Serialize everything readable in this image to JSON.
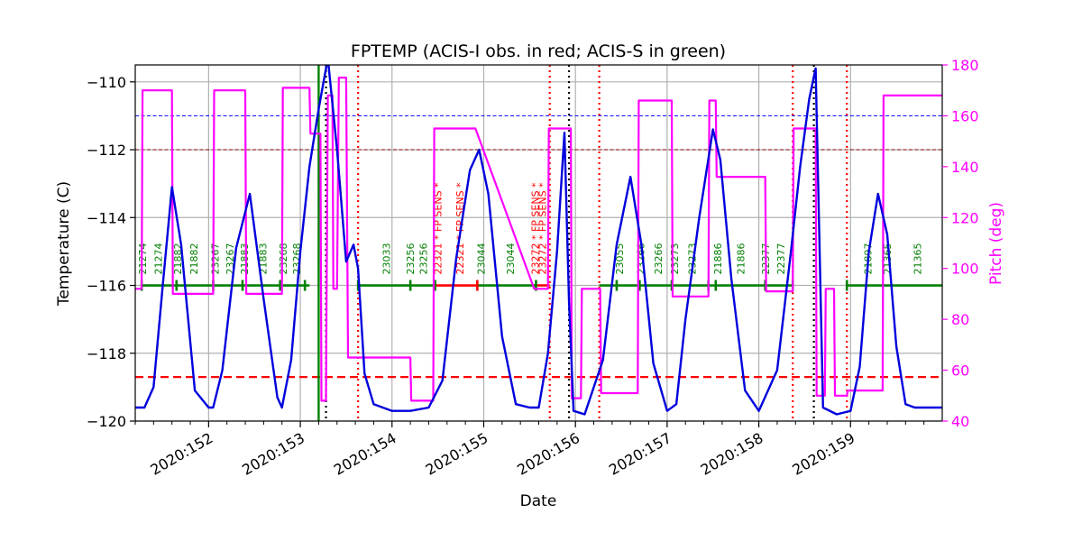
{
  "chart_data": {
    "type": "line",
    "title": "FPTEMP (ACIS-I obs. in red; ACIS-S in green)",
    "xlabel": "Date",
    "ylabel_left": "Temperature (C)",
    "ylabel_right": "Pitch (deg)",
    "xlim": [
      151.2,
      160.0
    ],
    "ylim_left": [
      -120,
      -109.5
    ],
    "ylim_right": [
      40,
      180
    ],
    "grid": true,
    "x_ticks": [
      152,
      153,
      154,
      155,
      156,
      157,
      158,
      159
    ],
    "x_tick_labels": [
      "2020:152",
      "2020:153",
      "2020:154",
      "2020:155",
      "2020:156",
      "2020:157",
      "2020:158",
      "2020:159"
    ],
    "y_ticks_left": [
      -120,
      -118,
      -116,
      -114,
      -112,
      -110
    ],
    "y_tick_labels_left": [
      "−120",
      "−118",
      "−116",
      "−114",
      "−112",
      "−110"
    ],
    "y_ticks_right": [
      40,
      60,
      80,
      100,
      120,
      140,
      160,
      180
    ],
    "y_tick_labels_right": [
      "40",
      "60",
      "80",
      "100",
      "120",
      "140",
      "160",
      "180"
    ],
    "colors": {
      "temperature": "#0000dd",
      "pitch": "#ff00ff",
      "acis_i": "#ff0000",
      "acis_s": "#008000",
      "grid": "#b0b0b0",
      "limit_dashed": "#ff0000",
      "limit_blue": "#0000ff",
      "limit_darkred": "#8b0000",
      "black_marker": "#000000"
    },
    "hlines": [
      {
        "y": -111.0,
        "color": "#0000ff",
        "style": "dashed-fine"
      },
      {
        "y": -112.0,
        "color": "#8b0000",
        "style": "dashed-fine"
      },
      {
        "y": -118.7,
        "color": "#ff0000",
        "style": "dashed-thick"
      }
    ],
    "vlines": [
      {
        "x": 153.2,
        "color": "#008000",
        "style": "solid"
      },
      {
        "x": 153.28,
        "color": "#000000",
        "style": "dotted"
      },
      {
        "x": 153.63,
        "color": "#ff0000",
        "style": "dotted"
      },
      {
        "x": 155.72,
        "color": "#ff0000",
        "style": "dotted"
      },
      {
        "x": 155.93,
        "color": "#000000",
        "style": "dotted"
      },
      {
        "x": 156.26,
        "color": "#ff0000",
        "style": "dotted"
      },
      {
        "x": 158.37,
        "color": "#ff0000",
        "style": "dotted"
      },
      {
        "x": 158.6,
        "color": "#000000",
        "style": "dotted"
      },
      {
        "x": 158.96,
        "color": "#ff0000",
        "style": "dotted"
      }
    ],
    "series": [
      {
        "name": "Temperature",
        "axis": "left",
        "x": [
          151.2,
          151.3,
          151.4,
          151.5,
          151.6,
          151.7,
          151.85,
          152.0,
          152.05,
          152.15,
          152.3,
          152.45,
          152.6,
          152.75,
          152.8,
          152.9,
          153.0,
          153.1,
          153.2,
          153.3,
          153.4,
          153.5,
          153.58,
          153.63,
          153.7,
          153.8,
          153.9,
          154.0,
          154.2,
          154.4,
          154.55,
          154.7,
          154.85,
          154.95,
          155.05,
          155.2,
          155.35,
          155.5,
          155.6,
          155.7,
          155.8,
          155.88,
          155.93,
          155.98,
          156.1,
          156.3,
          156.45,
          156.6,
          156.72,
          156.85,
          157.0,
          157.1,
          157.2,
          157.35,
          157.5,
          157.58,
          157.7,
          157.85,
          158.0,
          158.2,
          158.35,
          158.45,
          158.55,
          158.62,
          158.7,
          158.85,
          159.0,
          159.1,
          159.2,
          159.3,
          159.4,
          159.5,
          159.6,
          159.7,
          159.8,
          159.9,
          160.0
        ],
        "values": [
          -119.6,
          -119.6,
          -119.0,
          -116.0,
          -113.1,
          -114.8,
          -119.1,
          -119.6,
          -119.6,
          -118.5,
          -114.9,
          -113.3,
          -116.4,
          -119.3,
          -119.6,
          -118.2,
          -115.0,
          -112.5,
          -110.8,
          -109.3,
          -112.0,
          -115.3,
          -114.8,
          -115.5,
          -118.6,
          -119.5,
          -119.6,
          -119.7,
          -119.7,
          -119.6,
          -118.8,
          -115.2,
          -112.6,
          -112.0,
          -113.3,
          -117.5,
          -119.5,
          -119.6,
          -119.6,
          -118.0,
          -115.0,
          -111.5,
          -116.5,
          -119.7,
          -119.8,
          -118.2,
          -114.8,
          -112.8,
          -114.8,
          -118.3,
          -119.7,
          -119.5,
          -117.0,
          -114.0,
          -111.4,
          -112.3,
          -115.8,
          -119.1,
          -119.7,
          -118.5,
          -115.0,
          -112.5,
          -110.5,
          -109.6,
          -119.6,
          -119.8,
          -119.7,
          -118.4,
          -115.0,
          -113.3,
          -114.5,
          -117.8,
          -119.5,
          -119.6,
          -119.6,
          -119.6,
          -119.6
        ]
      },
      {
        "name": "Pitch",
        "axis": "right",
        "x": [
          151.2,
          151.27,
          151.28,
          151.3,
          151.6,
          151.61,
          151.65,
          152.05,
          152.06,
          152.08,
          152.4,
          152.41,
          152.45,
          152.8,
          152.81,
          152.83,
          153.1,
          153.11,
          153.2,
          153.22,
          153.23,
          153.28,
          153.3,
          153.35,
          153.36,
          153.4,
          153.42,
          153.5,
          153.52,
          153.57,
          153.6,
          153.64,
          153.65,
          154.2,
          154.21,
          154.45,
          154.46,
          154.9,
          154.91,
          155.55,
          155.56,
          155.7,
          155.71,
          155.95,
          155.96,
          156.06,
          156.07,
          156.15,
          156.27,
          156.28,
          156.68,
          156.69,
          157.05,
          157.06,
          157.45,
          157.46,
          157.53,
          157.54,
          158.07,
          158.08,
          158.37,
          158.38,
          158.62,
          158.63,
          158.72,
          158.73,
          158.82,
          158.83,
          158.96,
          158.97,
          159.35,
          159.36,
          160.0
        ],
        "values": [
          92,
          92,
          170,
          170,
          170,
          90,
          90,
          90,
          170,
          170,
          170,
          90,
          90,
          90,
          171,
          171,
          171,
          153,
          153,
          153,
          48,
          48,
          168,
          168,
          92,
          92,
          175,
          175,
          65,
          65,
          65,
          65,
          65,
          65,
          48,
          48,
          155,
          155,
          155,
          92,
          92,
          92,
          155,
          155,
          49,
          49,
          92,
          92,
          92,
          51,
          51,
          166,
          166,
          89,
          89,
          166,
          166,
          136,
          136,
          91,
          91,
          155,
          155,
          50,
          50,
          92,
          92,
          50,
          50,
          52,
          52,
          168,
          168
        ]
      }
    ],
    "observations": {
      "y": -116.0,
      "segments": [
        {
          "x0": 151.27,
          "x1": 152.05,
          "color": "#008000"
        },
        {
          "x0": 152.05,
          "x1": 153.1,
          "color": "#008000"
        },
        {
          "x0": 153.63,
          "x1": 154.47,
          "color": "#008000"
        },
        {
          "x0": 154.47,
          "x1": 154.93,
          "color": "#ff0000"
        },
        {
          "x0": 154.93,
          "x1": 155.57,
          "color": "#008000"
        },
        {
          "x0": 155.57,
          "x1": 155.72,
          "color": "#ff0000"
        },
        {
          "x0": 156.26,
          "x1": 157.5,
          "color": "#008000"
        },
        {
          "x0": 157.5,
          "x1": 158.37,
          "color": "#008000"
        },
        {
          "x0": 158.96,
          "x1": 160.0,
          "color": "#008000"
        }
      ],
      "ticks": [
        151.27,
        151.65,
        152.05,
        152.37,
        152.78,
        153.05,
        153.63,
        154.2,
        154.47,
        154.93,
        155.57,
        156.45,
        156.7,
        157.05,
        157.45,
        157.53,
        158.07,
        158.37,
        158.96
      ],
      "labels": [
        {
          "x": 151.32,
          "text": "21274",
          "color": "#008000"
        },
        {
          "x": 151.49,
          "text": "21274",
          "color": "#008000"
        },
        {
          "x": 151.7,
          "text": "21882",
          "color": "#008000"
        },
        {
          "x": 151.88,
          "text": "21882",
          "color": "#008000"
        },
        {
          "x": 152.11,
          "text": "23267",
          "color": "#008000"
        },
        {
          "x": 152.27,
          "text": "23267",
          "color": "#008000"
        },
        {
          "x": 152.43,
          "text": "21883",
          "color": "#008000"
        },
        {
          "x": 152.63,
          "text": "21883",
          "color": "#008000"
        },
        {
          "x": 152.85,
          "text": "23268",
          "color": "#008000"
        },
        {
          "x": 153.0,
          "text": "23268",
          "color": "#008000"
        },
        {
          "x": 153.98,
          "text": "23033",
          "color": "#008000"
        },
        {
          "x": 154.24,
          "text": "23256",
          "color": "#008000"
        },
        {
          "x": 154.38,
          "text": "23256",
          "color": "#008000"
        },
        {
          "x": 154.54,
          "text": "22321 * FP SENS *",
          "color": "#ff0000"
        },
        {
          "x": 154.78,
          "text": "22321 * FP SENS *",
          "color": "#ff0000"
        },
        {
          "x": 155.01,
          "text": "23044",
          "color": "#008000"
        },
        {
          "x": 155.33,
          "text": "23044",
          "color": "#008000"
        },
        {
          "x": 155.6,
          "text": "23272 * FP SENS *",
          "color": "#ff0000"
        },
        {
          "x": 155.68,
          "text": "23272 * FP SENS *",
          "color": "#ff0000"
        },
        {
          "x": 156.52,
          "text": "23055",
          "color": "#008000"
        },
        {
          "x": 156.75,
          "text": "23266",
          "color": "#008000"
        },
        {
          "x": 156.94,
          "text": "23266",
          "color": "#008000"
        },
        {
          "x": 157.12,
          "text": "23273",
          "color": "#008000"
        },
        {
          "x": 157.31,
          "text": "23273",
          "color": "#008000"
        },
        {
          "x": 157.59,
          "text": "21886",
          "color": "#008000"
        },
        {
          "x": 157.84,
          "text": "21886",
          "color": "#008000"
        },
        {
          "x": 158.11,
          "text": "22377",
          "color": "#008000"
        },
        {
          "x": 158.28,
          "text": "22377",
          "color": "#008000"
        },
        {
          "x": 159.23,
          "text": "21897",
          "color": "#008000"
        },
        {
          "x": 159.44,
          "text": "21365",
          "color": "#008000"
        },
        {
          "x": 159.77,
          "text": "21365",
          "color": "#008000"
        }
      ]
    }
  }
}
